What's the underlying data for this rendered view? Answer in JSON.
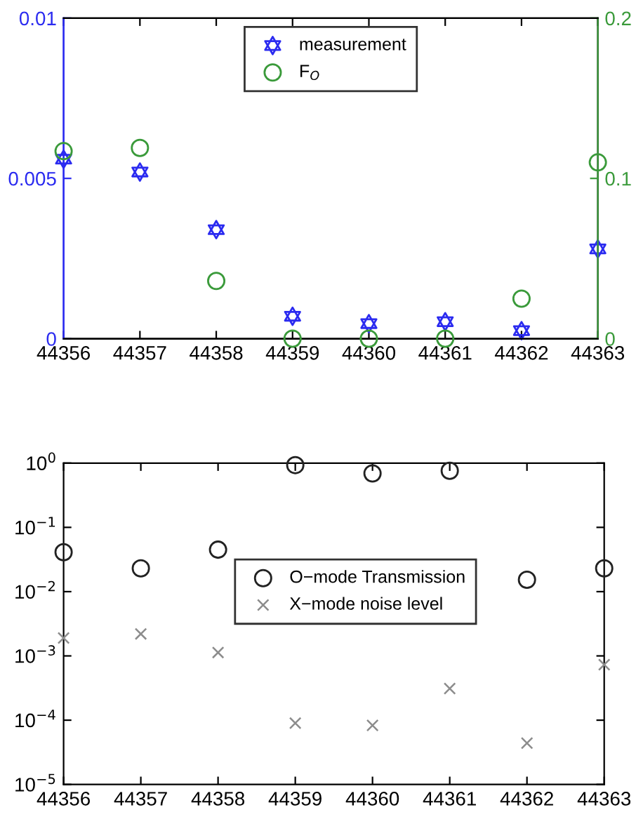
{
  "chart_data": [
    {
      "type": "scatter",
      "x": [
        44356,
        44357,
        44358,
        44359,
        44360,
        44361,
        44362,
        44363
      ],
      "xlim": [
        44356,
        44363
      ],
      "xticks": [
        44356,
        44357,
        44358,
        44359,
        44360,
        44361,
        44362,
        44363
      ],
      "ylim": [
        0,
        0.01
      ],
      "yticks": [
        0,
        0.005,
        0.01
      ],
      "y2lim": [
        0,
        0.2
      ],
      "y2ticks": [
        0,
        0.1,
        0.2
      ],
      "legend": "top",
      "grid": false,
      "series": [
        {
          "name": "measurement",
          "color": "#2b2bf0",
          "marker": "star",
          "values": [
            0.0056,
            0.0052,
            0.0034,
            0.0007,
            0.00047,
            0.00053,
            0.00025,
            0.0028
          ]
        },
        {
          "name": "F$_{O}$",
          "color": "#3a9a3a",
          "marker": "circle",
          "axis": "y2",
          "values": [
            0.117,
            0.119,
            0.036,
            0,
            0,
            0,
            0.025,
            0.11
          ]
        }
      ]
    },
    {
      "type": "scatter",
      "x": [
        44356,
        44357,
        44358,
        44359,
        44360,
        44361,
        44362,
        44363
      ],
      "xlim": [
        44356,
        44363
      ],
      "xticks": [
        44356,
        44357,
        44358,
        44359,
        44360,
        44361,
        44362,
        44363
      ],
      "log": "y",
      "ylim": [
        1e-05,
        1
      ],
      "yticks": [
        {
          "value": 1e-05,
          "label": "10$^{−5}$"
        },
        {
          "value": 0.0001,
          "label": "10$^{−4}$"
        },
        {
          "value": 0.001,
          "label": "10$^{−3}$"
        },
        {
          "value": 0.01,
          "label": "10$^{−2}$"
        },
        {
          "value": 0.1,
          "label": "10$^{−1}$"
        },
        {
          "value": 1,
          "label": "10$^{0}$"
        }
      ],
      "legend": "center",
      "grid": false,
      "series": [
        {
          "name": "O−mode Transmission",
          "color": "#222222",
          "marker": "circle",
          "values": [
            0.041,
            0.023,
            0.045,
            0.93,
            0.69,
            0.76,
            0.0153,
            0.023
          ]
        },
        {
          "name": "X−mode noise level",
          "color": "#8c8c8c",
          "marker": "cross",
          "values": [
            0.0019,
            0.0022,
            0.00113,
            9e-05,
            8.3e-05,
            0.00031,
            4.4e-05,
            0.00073
          ]
        }
      ]
    }
  ]
}
